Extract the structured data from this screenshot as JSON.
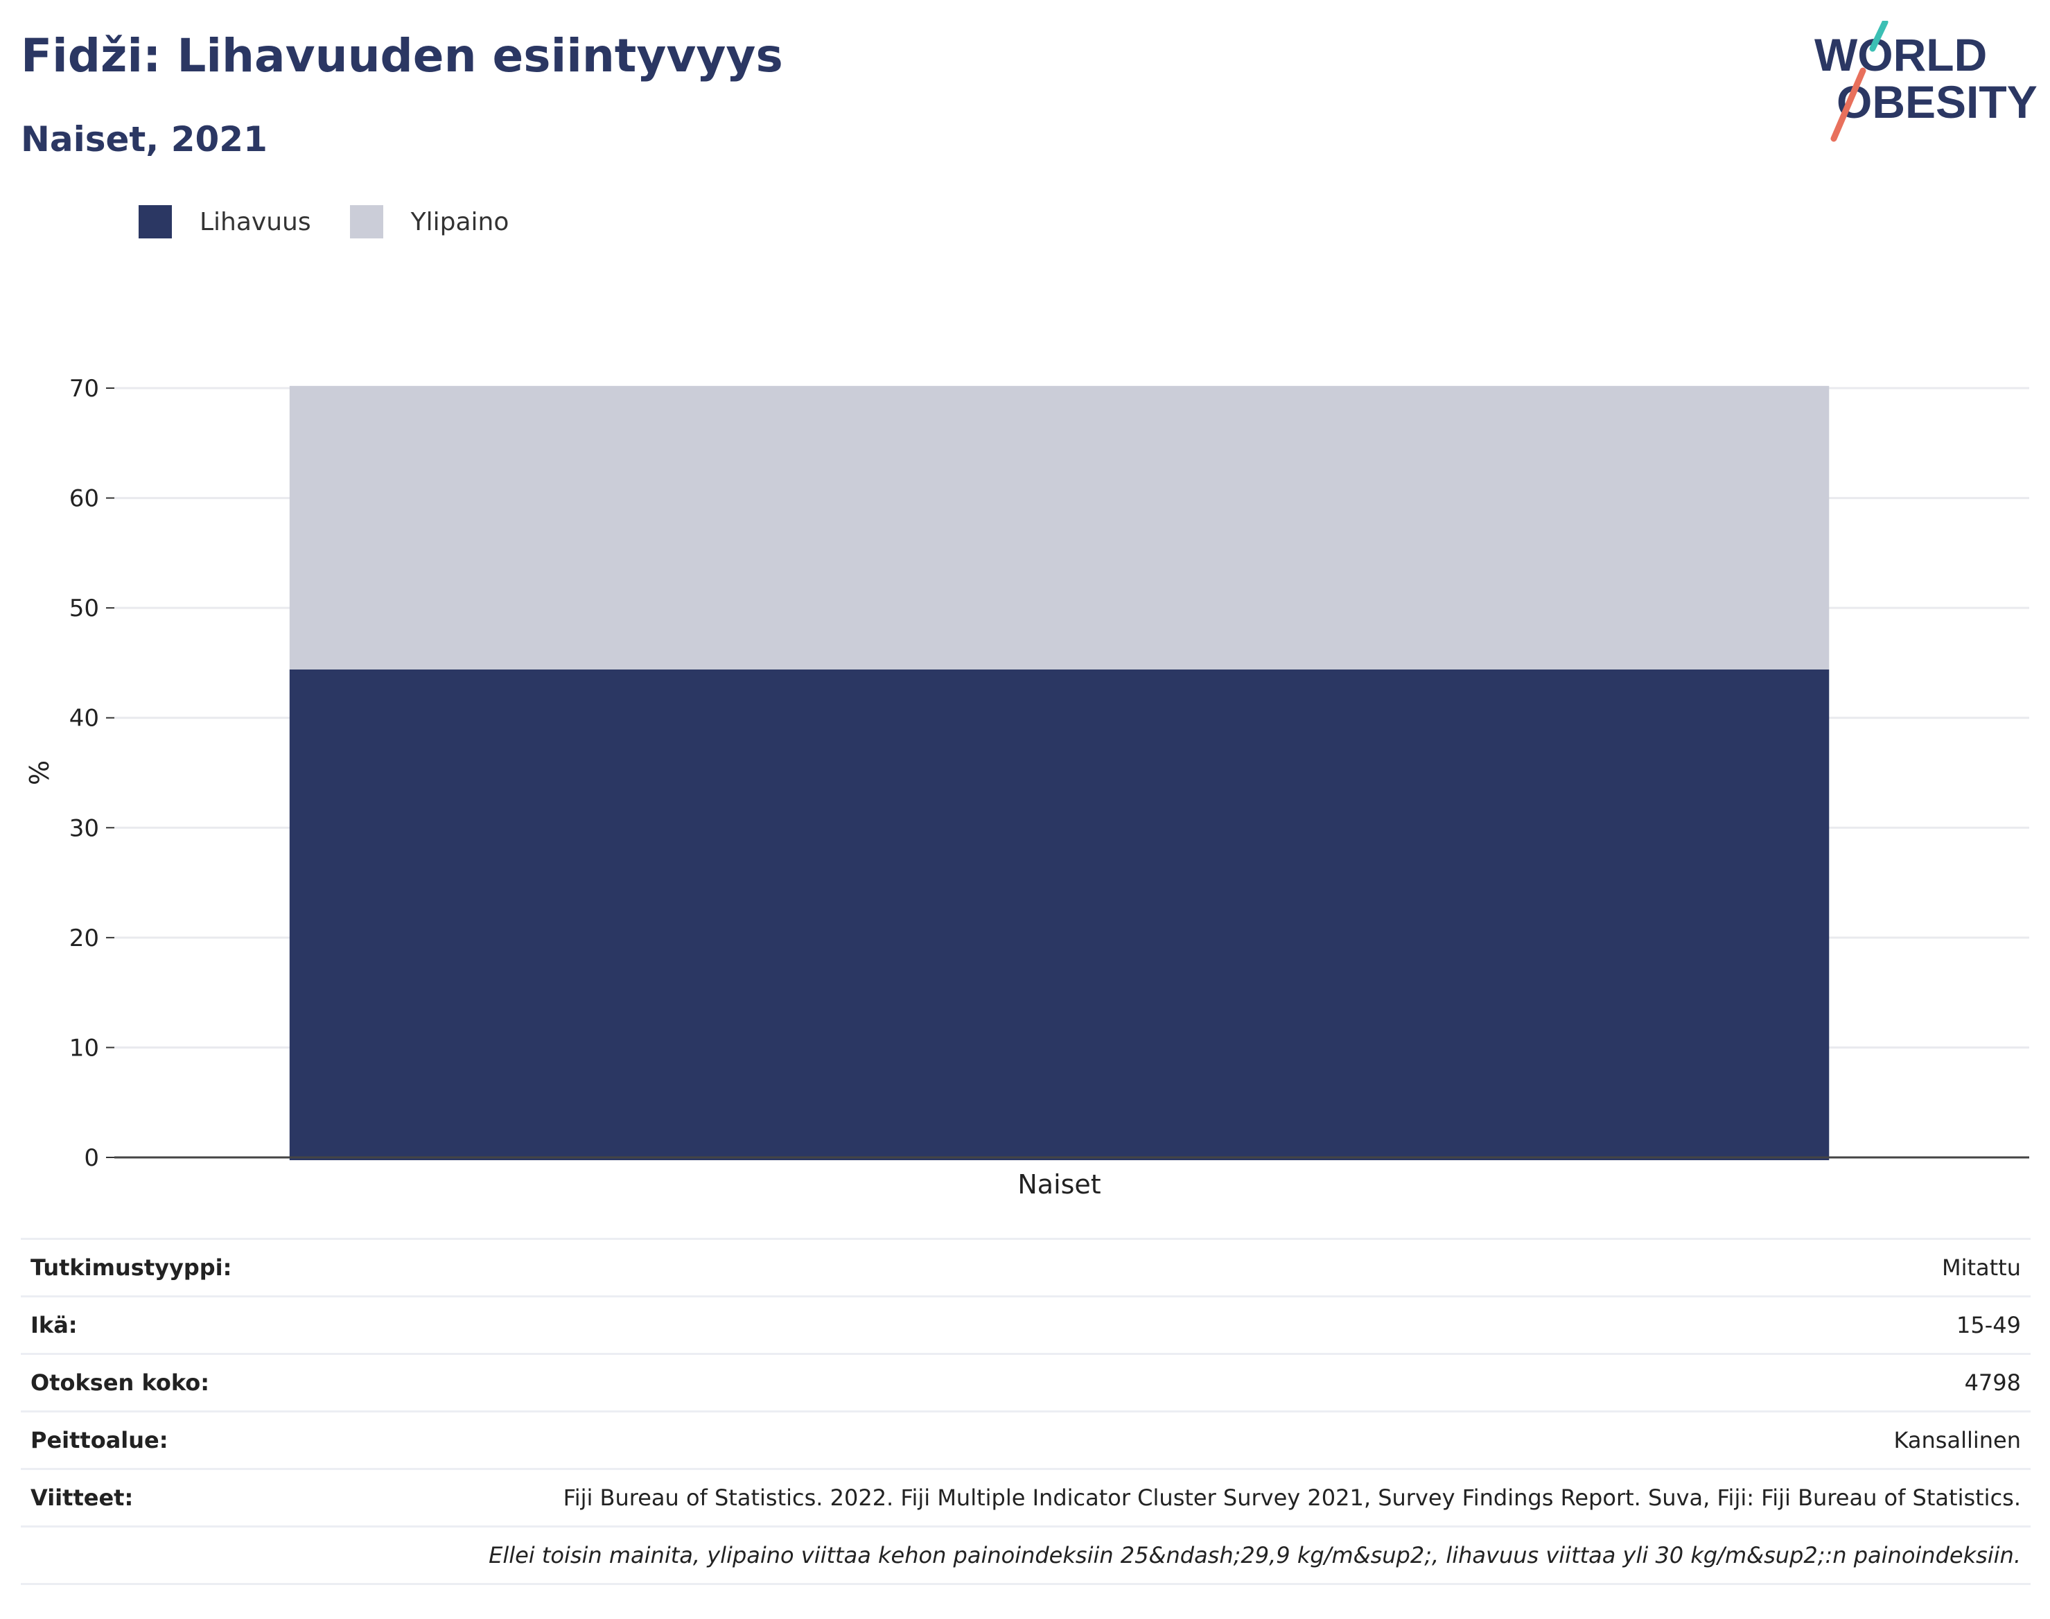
{
  "header": {
    "title": "Fidži: Lihavuuden esiintyvyys",
    "subtitle": "Naiset, 2021"
  },
  "logo": {
    "line1": "WORLD",
    "line2": "OBESITY"
  },
  "colors": {
    "obesity": "#2b3763",
    "overweight": "#cbcdd8",
    "title": "#2b3763"
  },
  "chart_data": {
    "type": "bar",
    "stacked": true,
    "categories": [
      "Naiset"
    ],
    "series": [
      {
        "name": "Lihavuus",
        "values": [
          44.4
        ]
      },
      {
        "name": "Ylipaino",
        "values": [
          25.8
        ]
      }
    ],
    "ylabel": "%",
    "ylim": [
      0,
      70
    ],
    "yticks": [
      "0",
      "10",
      "20",
      "30",
      "40",
      "50",
      "60",
      "70"
    ],
    "grid": true,
    "legend_position": "top-left"
  },
  "meta": [
    {
      "label": "Tutkimustyyppi:",
      "value": "Mitattu"
    },
    {
      "label": "Ikä:",
      "value": "15-49"
    },
    {
      "label": "Otoksen koko:",
      "value": "4798"
    },
    {
      "label": "Peittoalue:",
      "value": "Kansallinen"
    },
    {
      "label": "Viitteet:",
      "value": "Fiji Bureau of Statistics. 2022. Fiji Multiple Indicator Cluster Survey 2021, Survey Findings Report. Suva, Fiji: Fiji Bureau of Statistics."
    }
  ],
  "footnote": "Ellei toisin mainita, ylipaino viittaa kehon painoindeksiin 25&ndash;29,9 kg/m&sup2;, lihavuus viittaa yli 30 kg/m&sup2;:n painoindeksiin."
}
